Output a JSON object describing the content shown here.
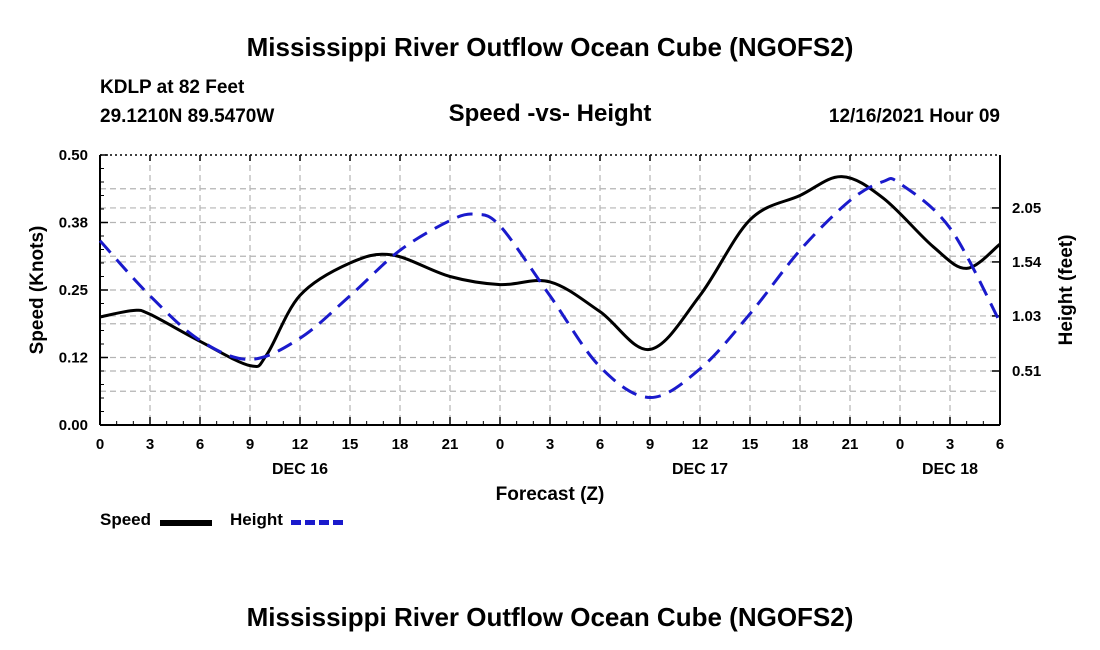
{
  "page": {
    "title_top": "Mississippi River Outflow Ocean Cube (NGOFS2)",
    "title_bottom": "Mississippi River Outflow Ocean Cube (NGOFS2)",
    "station": "KDLP at 82 Feet",
    "location": "29.1210N  89.5470W",
    "datetime": "12/16/2021 Hour 09"
  },
  "chart_data": {
    "type": "line",
    "title": "Speed -vs- Height",
    "xlabel": "Forecast (Z)",
    "ylabel_left": "Speed (Knots)",
    "ylabel_right": "Height (feet)",
    "x_range_hours": [
      0,
      54
    ],
    "x_tick_labels": [
      "0",
      "3",
      "6",
      "9",
      "12",
      "15",
      "18",
      "21",
      "0",
      "3",
      "6",
      "9",
      "12",
      "15",
      "18",
      "21",
      "0",
      "3",
      "6"
    ],
    "day_labels": [
      {
        "label": "DEC 16",
        "hour": 12
      },
      {
        "label": "DEC 17",
        "hour": 36
      },
      {
        "label": "DEC 18",
        "hour": 51
      }
    ],
    "y_left": {
      "min": 0,
      "max": 0.5,
      "ticks": [
        "0.00",
        "0.12",
        "0.25",
        "0.38",
        "0.50"
      ],
      "tick_values": [
        0,
        0.125,
        0.25,
        0.375,
        0.5
      ]
    },
    "y_right": {
      "min": 0,
      "max": 2.55,
      "ticks": [
        "0.51",
        "1.03",
        "1.54",
        "2.05"
      ],
      "tick_values": [
        0.51,
        1.03,
        1.54,
        2.05
      ]
    },
    "grid": true,
    "legend": [
      {
        "label": "Speed",
        "color": "#000000",
        "style": "solid"
      },
      {
        "label": "Height",
        "color": "#1a1acc",
        "style": "dashed"
      }
    ],
    "series": [
      {
        "name": "Speed",
        "axis": "left",
        "color": "#000000",
        "style": "solid",
        "points": [
          [
            0,
            0.2
          ],
          [
            2,
            0.212
          ],
          [
            3,
            0.205
          ],
          [
            6,
            0.155
          ],
          [
            9,
            0.11
          ],
          [
            10,
            0.13
          ],
          [
            12,
            0.24
          ],
          [
            15,
            0.3
          ],
          [
            17.5,
            0.315
          ],
          [
            21,
            0.275
          ],
          [
            24,
            0.26
          ],
          [
            27,
            0.265
          ],
          [
            30,
            0.21
          ],
          [
            33,
            0.14
          ],
          [
            36,
            0.24
          ],
          [
            39,
            0.38
          ],
          [
            42,
            0.425
          ],
          [
            44.5,
            0.46
          ],
          [
            47,
            0.42
          ],
          [
            50,
            0.33
          ],
          [
            52,
            0.29
          ],
          [
            54,
            0.335
          ]
        ]
      },
      {
        "name": "Height",
        "axis": "right",
        "color": "#1a1acc",
        "style": "dashed",
        "points": [
          [
            0,
            1.74
          ],
          [
            3,
            1.22
          ],
          [
            6,
            0.8
          ],
          [
            9,
            0.62
          ],
          [
            12,
            0.82
          ],
          [
            15,
            1.22
          ],
          [
            18,
            1.65
          ],
          [
            21,
            1.93
          ],
          [
            22.5,
            1.99
          ],
          [
            24,
            1.88
          ],
          [
            27,
            1.22
          ],
          [
            30,
            0.55
          ],
          [
            33,
            0.26
          ],
          [
            36,
            0.53
          ],
          [
            39,
            1.05
          ],
          [
            42,
            1.65
          ],
          [
            45,
            2.12
          ],
          [
            47,
            2.3
          ],
          [
            48,
            2.28
          ],
          [
            51,
            1.86
          ],
          [
            54,
            0.97
          ]
        ]
      }
    ]
  }
}
